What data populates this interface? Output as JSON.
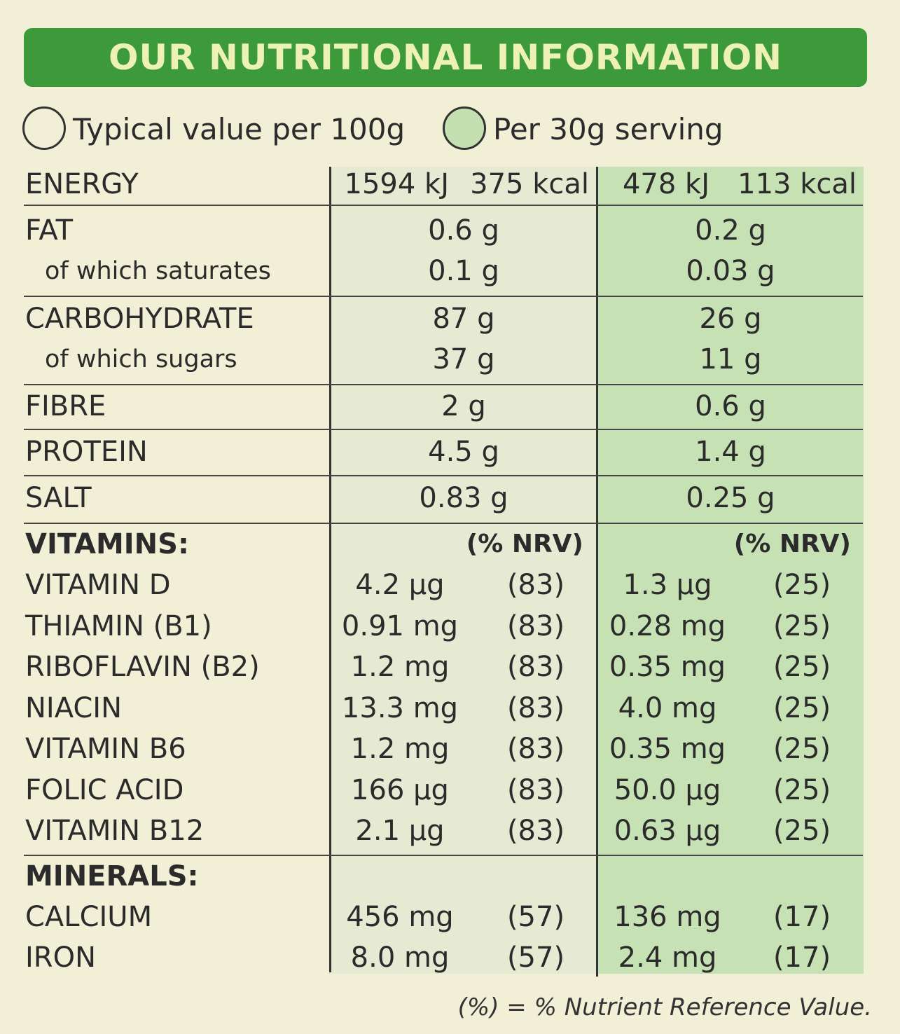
{
  "title": "OUR NUTRITIONAL INFORMATION",
  "legend": {
    "per100": "Typical value per 100g",
    "perServing": "Per 30g serving"
  },
  "energy": {
    "label": "ENERGY",
    "kj100": "1594 kJ",
    "kcal100": "375 kcal",
    "kjServ": "478 kJ",
    "kcalServ": "113 kcal"
  },
  "rows": [
    {
      "label": "FAT",
      "v100": "0.6 g",
      "vServ": "0.2 g"
    },
    {
      "label": "of which saturates",
      "v100": "0.1 g",
      "vServ": "0.03 g"
    },
    {
      "label": "CARBOHYDRATE",
      "v100": "87 g",
      "vServ": "26 g"
    },
    {
      "label": "of which sugars",
      "v100": "37 g",
      "vServ": "11 g"
    },
    {
      "label": "FIBRE",
      "v100": "2 g",
      "vServ": "0.6 g"
    },
    {
      "label": "PROTEIN",
      "v100": "4.5 g",
      "vServ": "1.4 g"
    },
    {
      "label": "SALT",
      "v100": "0.83 g",
      "vServ": "0.25 g"
    }
  ],
  "vitamins": {
    "header": "VITAMINS:",
    "nrv": "(% NRV)",
    "items": [
      {
        "label": "VITAMIN D",
        "v100": "4.2 µg",
        "n100": "(83)",
        "vServ": "1.3 µg",
        "nServ": "(25)"
      },
      {
        "label": "THIAMIN (B1)",
        "v100": "0.91 mg",
        "n100": "(83)",
        "vServ": "0.28 mg",
        "nServ": "(25)"
      },
      {
        "label": "RIBOFLAVIN (B2)",
        "v100": "1.2 mg",
        "n100": "(83)",
        "vServ": "0.35 mg",
        "nServ": "(25)"
      },
      {
        "label": "NIACIN",
        "v100": "13.3 mg",
        "n100": "(83)",
        "vServ": "4.0 mg",
        "nServ": "(25)"
      },
      {
        "label": "VITAMIN B6",
        "v100": "1.2 mg",
        "n100": "(83)",
        "vServ": "0.35 mg",
        "nServ": "(25)"
      },
      {
        "label": "FOLIC ACID",
        "v100": "166 µg",
        "n100": "(83)",
        "vServ": "50.0 µg",
        "nServ": "(25)"
      },
      {
        "label": "VITAMIN B12",
        "v100": "2.1 µg",
        "n100": "(83)",
        "vServ": "0.63 µg",
        "nServ": "(25)"
      }
    ]
  },
  "minerals": {
    "header": "MINERALS:",
    "items": [
      {
        "label": "CALCIUM",
        "v100": "456 mg",
        "n100": "(57)",
        "vServ": "136 mg",
        "nServ": "(17)"
      },
      {
        "label": "IRON",
        "v100": "8.0 mg",
        "n100": "(57)",
        "vServ": "2.4 mg",
        "nServ": "(17)"
      }
    ]
  },
  "footnote": "(%) = % Nutrient Reference Value.",
  "colors": {
    "banner": "#3c9a3a",
    "bannerText": "#eef1b6",
    "serving": "#c6e1b4",
    "background": "#f1efd6"
  }
}
